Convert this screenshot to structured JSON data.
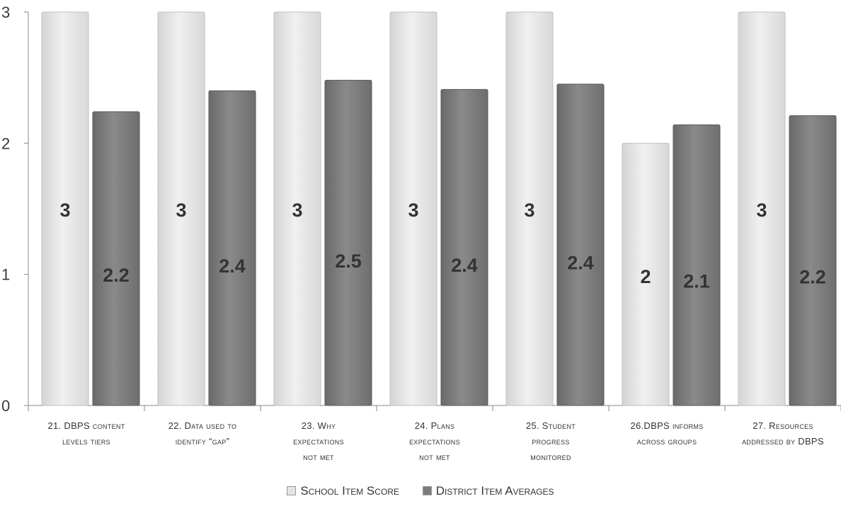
{
  "chart_data": {
    "type": "bar",
    "title": "",
    "xlabel": "",
    "ylabel": "",
    "ylim": [
      0,
      3
    ],
    "yticks": [
      "0",
      "1",
      "2",
      "3"
    ],
    "categories": [
      [
        "21.  DBPS content",
        "levels tiers"
      ],
      [
        "22. Data used to",
        "identify “gap”"
      ],
      [
        "23. Why",
        "expectations",
        "not met"
      ],
      [
        "24. Plans",
        "expectations",
        "not met"
      ],
      [
        "25. Student",
        "progress",
        "monitored"
      ],
      [
        "26.DBPS informs",
        "across groups"
      ],
      [
        "27. Resources",
        "addressed by DBPS"
      ]
    ],
    "series": [
      {
        "name": "School Item Score",
        "values": [
          3,
          3,
          3,
          3,
          3,
          2,
          3
        ],
        "labels": [
          "3",
          "3",
          "3",
          "3",
          "3",
          "2",
          "3"
        ],
        "color": "#e4e4e4"
      },
      {
        "name": "District Item Averages",
        "values": [
          2.24,
          2.4,
          2.48,
          2.41,
          2.45,
          2.14,
          2.21
        ],
        "labels": [
          "2.2",
          "2.4",
          "2.5",
          "2.4",
          "2.4",
          "2.1",
          "2.2"
        ],
        "color": "#7c7c7c"
      }
    ],
    "legend_position": "bottom",
    "grid": false
  }
}
